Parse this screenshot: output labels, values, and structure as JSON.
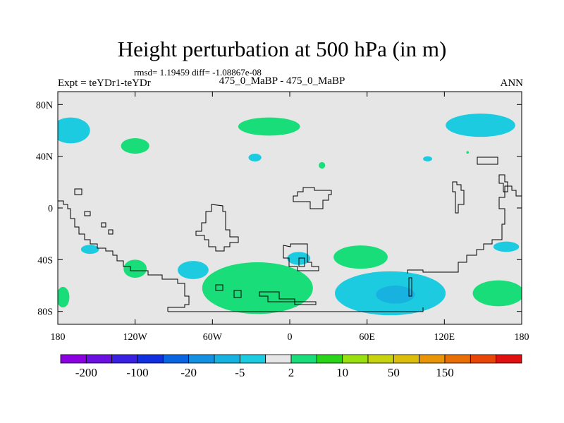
{
  "chart_data": {
    "type": "heatmap",
    "title": "Height perturbation at 500 hPa (in m)",
    "stats_line": "rmsd= 1.19459 diff= -1.08867e-08",
    "left_label": "Expt = teYDr1-teYDr",
    "center_label": "475_0_MaBP - 475_0_MaBP",
    "right_label": "ANN",
    "x_axis": {
      "range": [
        -180,
        180
      ],
      "ticks": [
        -180,
        -120,
        -60,
        0,
        60,
        120,
        180
      ],
      "tick_labels": [
        "180",
        "120W",
        "60W",
        "0",
        "60E",
        "120E",
        "180"
      ]
    },
    "y_axis": {
      "range": [
        -90,
        90
      ],
      "ticks": [
        80,
        40,
        0,
        -40,
        -80
      ],
      "tick_labels": [
        "80N",
        "40N",
        "0",
        "40S",
        "80S"
      ]
    },
    "colorbar": {
      "colors": [
        "#8b00e0",
        "#6a10e0",
        "#3a20e0",
        "#1030e0",
        "#0a66e0",
        "#1490e0",
        "#18b2e0",
        "#1ccbe0",
        "#e6e6e6",
        "#18dd78",
        "#2ad41a",
        "#9ae011",
        "#c8d310",
        "#dcbd0b",
        "#e89608",
        "#e86e08",
        "#e84508",
        "#e01010"
      ],
      "labels": [
        "-200",
        "-100",
        "-20",
        "-5",
        "2",
        "10",
        "50",
        "150"
      ],
      "label_boundaries": [
        1,
        3,
        5,
        7,
        9,
        11,
        13,
        15
      ]
    },
    "background_color": "#e6e6e6",
    "positive_color": "#18dd78",
    "negative_color": "#1ccbe0",
    "strong_negative_color": "#18b2e0",
    "anomalies": [
      {
        "sign": "neg",
        "lon": -170,
        "lat": 60,
        "rlon": 15,
        "rlat": 10
      },
      {
        "sign": "pos",
        "lon": -120,
        "lat": 48,
        "rlon": 11,
        "rlat": 6
      },
      {
        "sign": "pos",
        "lon": -16,
        "lat": 63,
        "rlon": 24,
        "rlat": 7
      },
      {
        "sign": "neg",
        "lon": -27,
        "lat": 39,
        "rlon": 5,
        "rlat": 3
      },
      {
        "sign": "pos",
        "lon": 25,
        "lat": 33,
        "rlon": 2.5,
        "rlat": 2.5
      },
      {
        "sign": "neg",
        "lon": 148,
        "lat": 64,
        "rlon": 27,
        "rlat": 9
      },
      {
        "sign": "neg",
        "lon": 107,
        "lat": 38,
        "rlon": 3.5,
        "rlat": 2
      },
      {
        "sign": "pos",
        "lon": 138,
        "lat": 43,
        "rlon": 1,
        "rlat": 1
      },
      {
        "sign": "neg",
        "lon": -155,
        "lat": -32,
        "rlon": 7,
        "rlat": 3.5
      },
      {
        "sign": "pos",
        "lon": -120,
        "lat": -47,
        "rlon": 9,
        "rlat": 7
      },
      {
        "sign": "neg",
        "lon": -75,
        "lat": -48,
        "rlon": 12,
        "rlat": 7
      },
      {
        "sign": "neg",
        "lon": 7,
        "lat": -39,
        "rlon": 9,
        "rlat": 5
      },
      {
        "sign": "pos",
        "lon": 55,
        "lat": -38,
        "rlon": 21,
        "rlat": 9
      },
      {
        "sign": "neg",
        "lon": 168,
        "lat": -30,
        "rlon": 10,
        "rlat": 4
      },
      {
        "sign": "pos",
        "lon": -25,
        "lat": -62,
        "rlon": 43,
        "rlat": 20
      },
      {
        "sign": "neg",
        "lon": 78,
        "lat": -66,
        "rlon": 43,
        "rlat": 17
      },
      {
        "sign": "neg2",
        "lon": 82,
        "lat": -67,
        "rlon": 15,
        "rlat": 7
      },
      {
        "sign": "pos",
        "lon": 162,
        "lat": -66,
        "rlon": 20,
        "rlat": 10
      },
      {
        "sign": "pos",
        "lon": -176,
        "lat": -69,
        "rlon": 5,
        "rlat": 8
      }
    ]
  }
}
